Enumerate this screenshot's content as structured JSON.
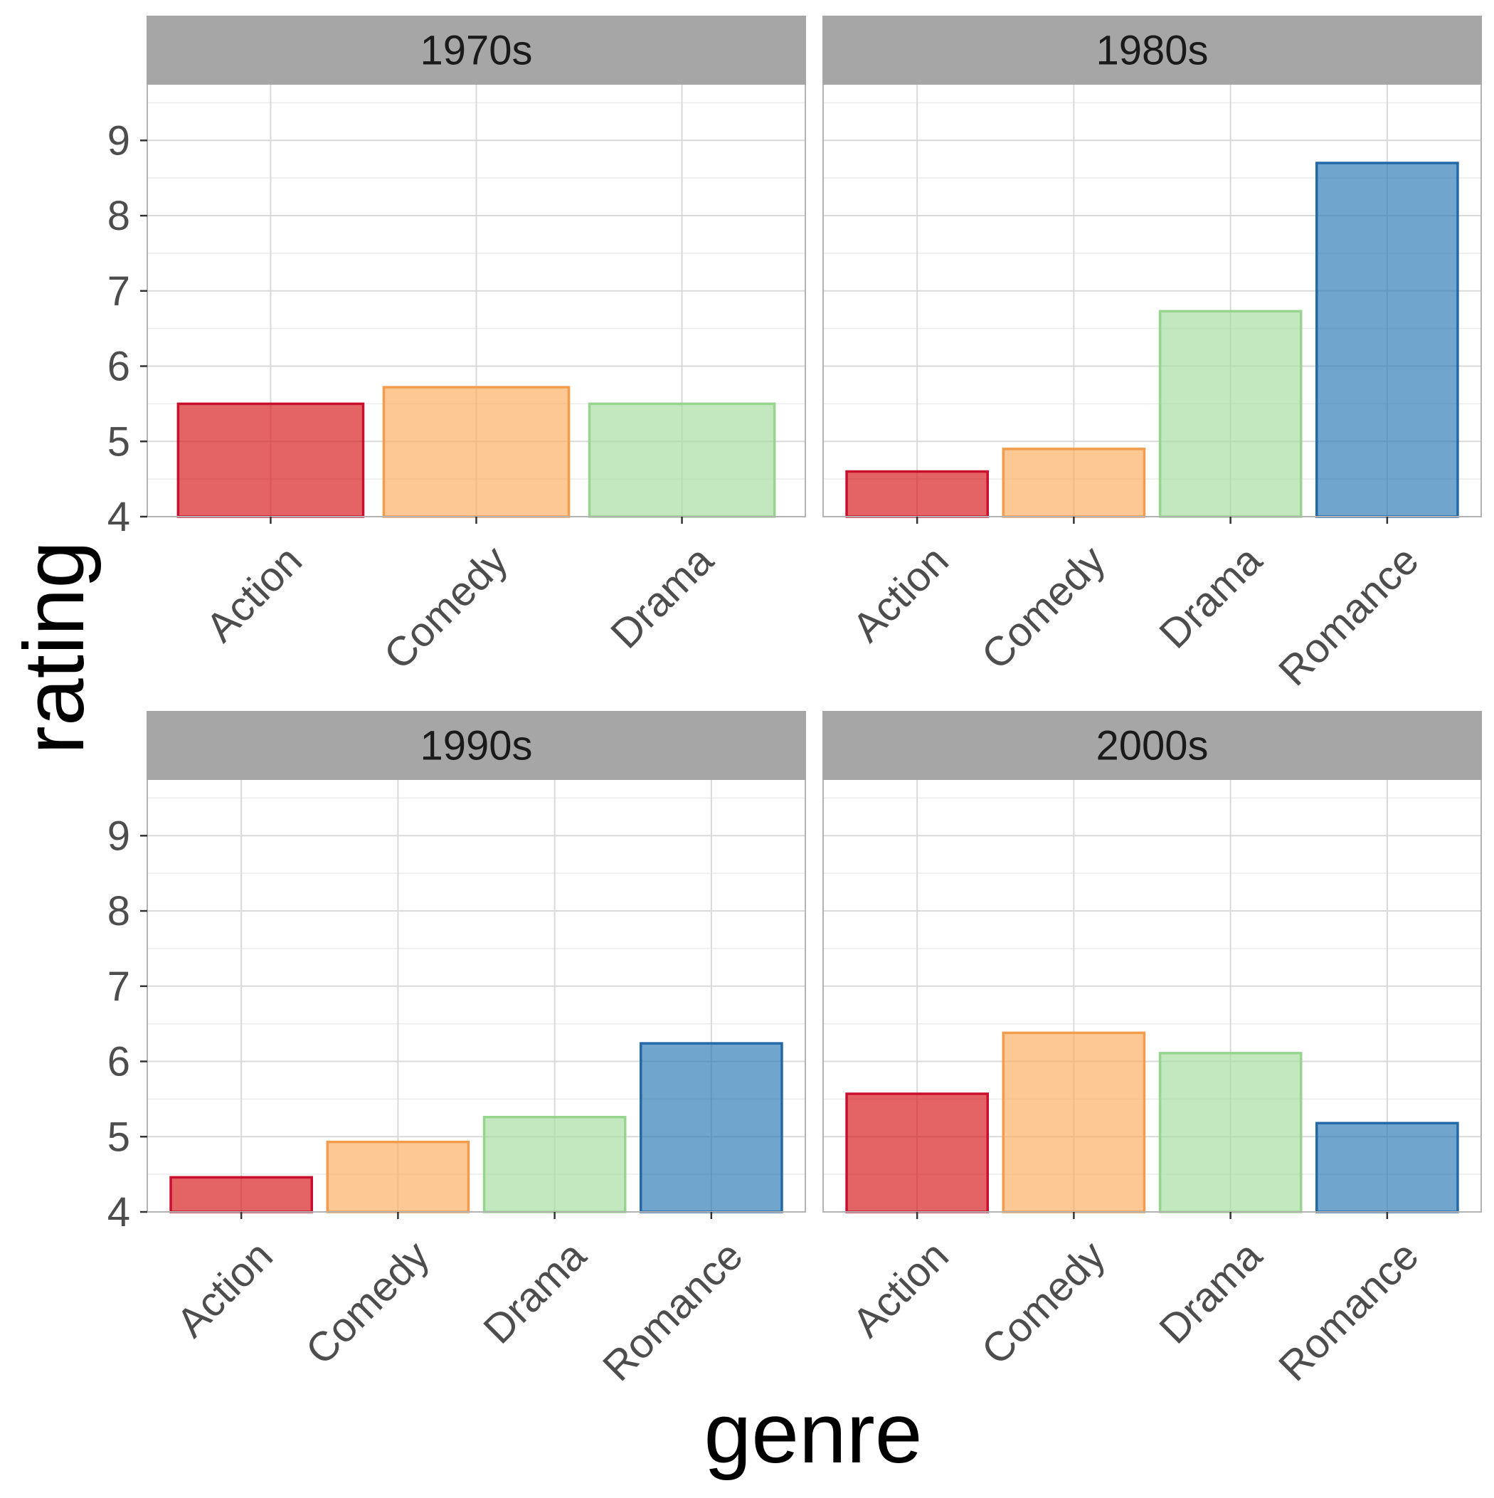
{
  "chart_data": {
    "type": "bar",
    "xlabel": "genre",
    "ylabel": "rating",
    "ylim": [
      4,
      9.75
    ],
    "yticks": [
      4,
      5,
      6,
      7,
      8,
      9
    ],
    "grid": true,
    "legend": "none",
    "colors": {
      "Action": {
        "fill": "#D7191C",
        "stroke": "#C8102E"
      },
      "Comedy": {
        "fill": "#FDAE61",
        "stroke": "#F39C4E"
      },
      "Drama": {
        "fill": "#A6DBA0",
        "stroke": "#97D58E"
      },
      "Romance": {
        "fill": "#2C7BB6",
        "stroke": "#2369A8"
      }
    },
    "panels": [
      {
        "title": "1970s",
        "categories": [
          "Action",
          "Comedy",
          "Drama"
        ],
        "values": [
          5.5,
          5.72,
          5.5
        ]
      },
      {
        "title": "1980s",
        "categories": [
          "Action",
          "Comedy",
          "Drama",
          "Romance"
        ],
        "values": [
          4.6,
          4.9,
          6.73,
          8.7
        ]
      },
      {
        "title": "1990s",
        "categories": [
          "Action",
          "Comedy",
          "Drama",
          "Romance"
        ],
        "values": [
          4.46,
          4.93,
          5.26,
          6.24
        ]
      },
      {
        "title": "2000s",
        "categories": [
          "Action",
          "Comedy",
          "Drama",
          "Romance"
        ],
        "values": [
          5.57,
          6.38,
          6.11,
          5.18
        ]
      }
    ]
  }
}
